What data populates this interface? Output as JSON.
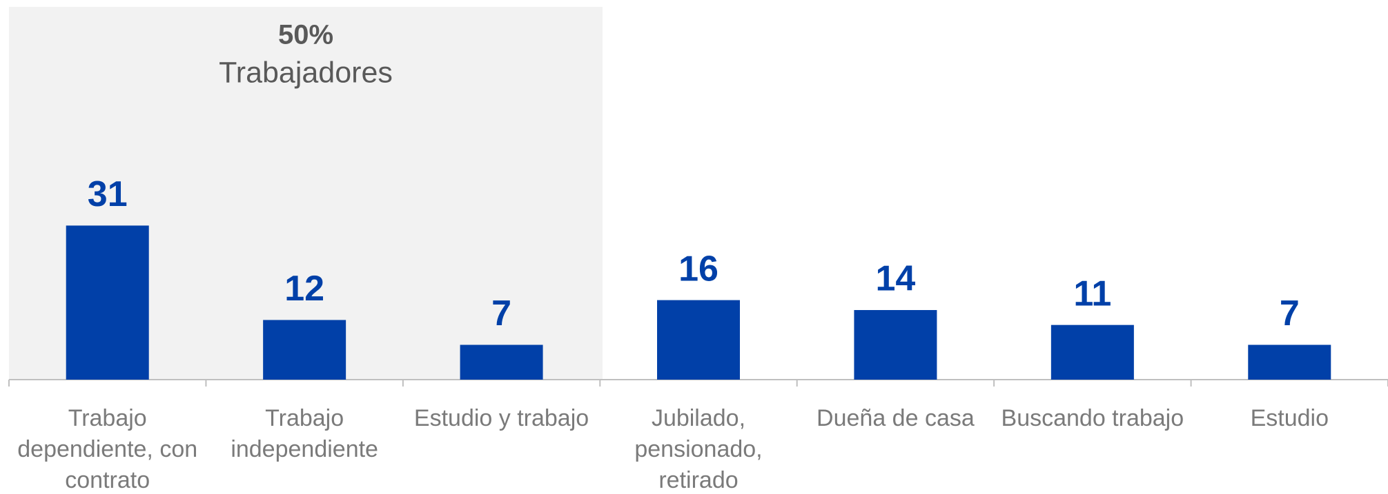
{
  "chart_data": {
    "type": "bar",
    "annotations": [
      "50%",
      "Trabajadores"
    ],
    "categories": [
      "Trabajo dependiente, con contrato",
      "Trabajo independiente",
      "Estudio y trabajo",
      "Jubilado, pensionado, retirado",
      "Dueña de casa",
      "Buscando trabajo",
      "Estudio"
    ],
    "values": [
      31,
      12,
      7,
      16,
      14,
      11,
      7
    ],
    "color": "#0140a8",
    "ylim": [
      0,
      75
    ]
  }
}
